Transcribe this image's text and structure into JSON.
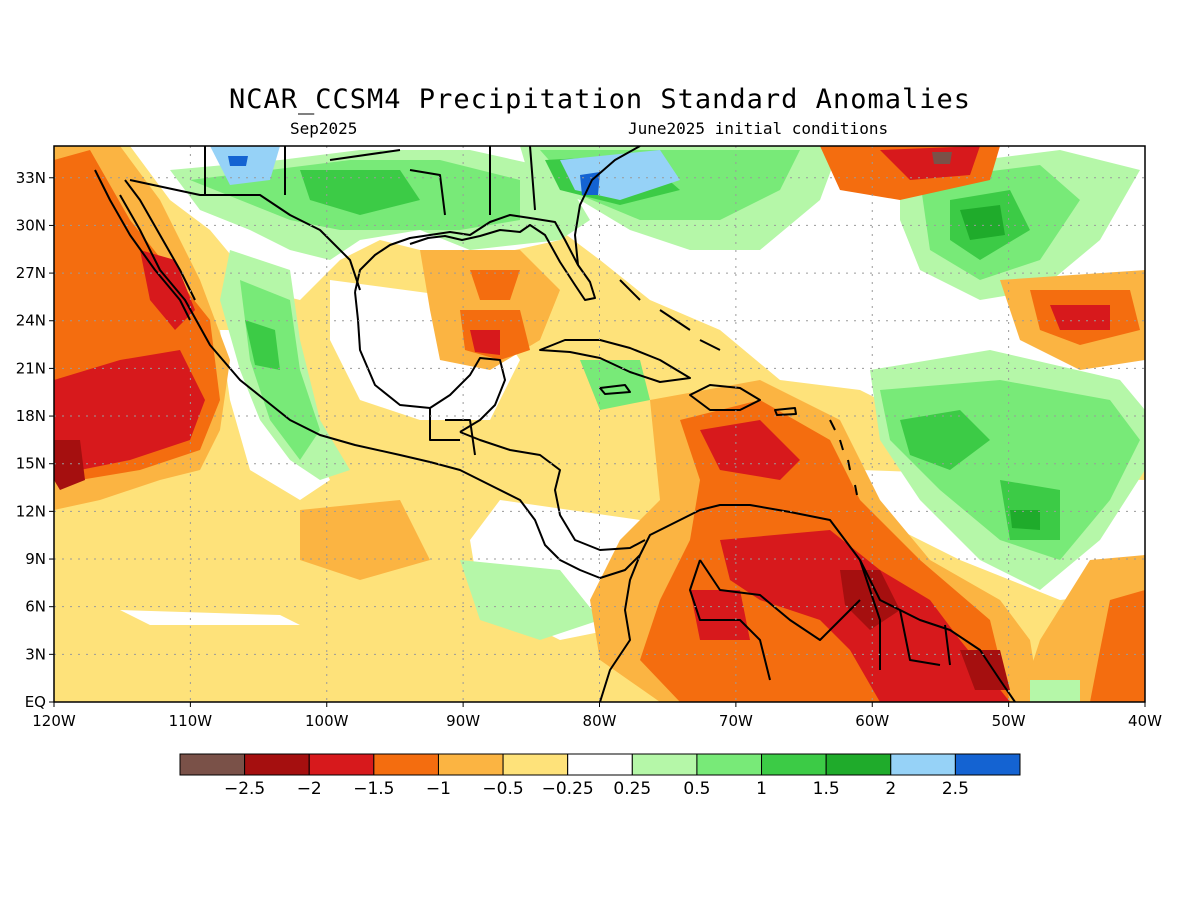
{
  "header": {
    "title": "NCAR_CCSM4 Precipitation Standard Anomalies",
    "valid_month": "Sep2025",
    "initial_conditions": "June2025 initial conditions"
  },
  "map": {
    "lat_range": [
      0,
      35
    ],
    "lon_range": [
      -120,
      -40
    ],
    "lat_labels": [
      "EQ",
      "3N",
      "6N",
      "9N",
      "12N",
      "15N",
      "18N",
      "21N",
      "24N",
      "27N",
      "30N",
      "33N"
    ],
    "lon_labels": [
      "120W",
      "110W",
      "100W",
      "90W",
      "80W",
      "70W",
      "60W",
      "50W",
      "40W"
    ],
    "gridlines": true
  },
  "colorbar": {
    "colors": [
      "#7a5148",
      "#a50f0f",
      "#d7191c",
      "#f46d0f",
      "#fbb442",
      "#fee27a",
      "#ffffff",
      "#b5f7a8",
      "#78ea78",
      "#3ccb46",
      "#1fab2b",
      "#96d2f7",
      "#1463d2"
    ],
    "tick_labels": [
      "−2.5",
      "−2",
      "−1.5",
      "−1",
      "−0.5",
      "−0.25",
      "0.25",
      "0.5",
      "1",
      "1.5",
      "2",
      "2.5"
    ]
  }
}
